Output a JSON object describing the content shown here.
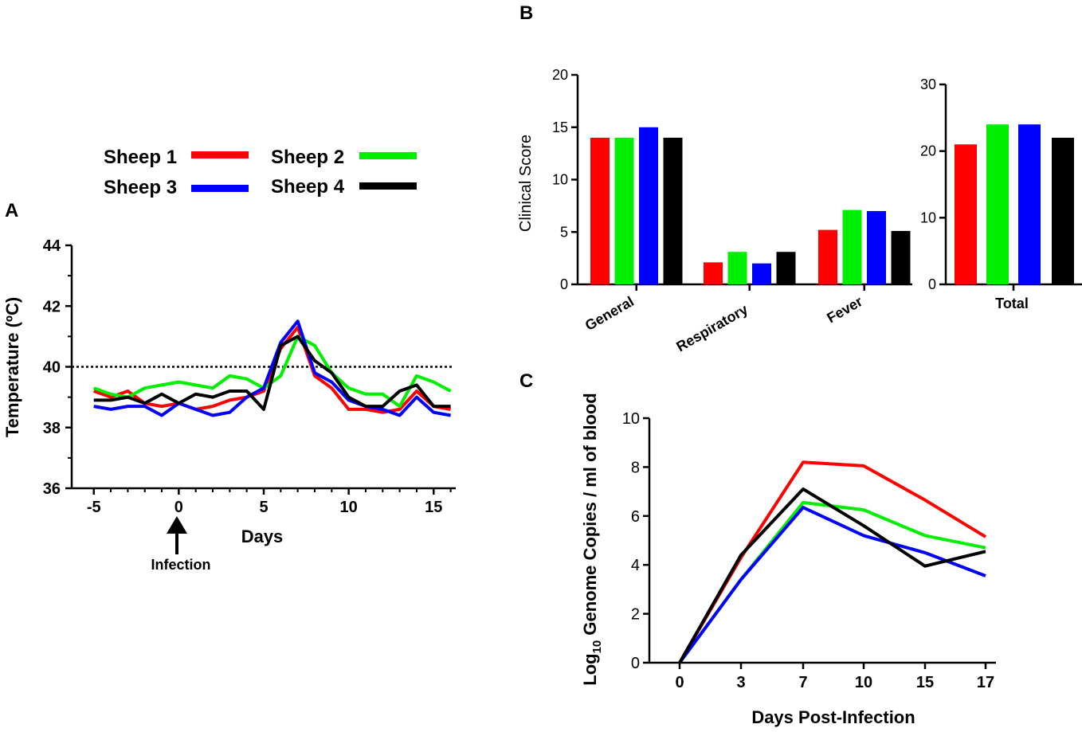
{
  "colors": {
    "sheep1": "#ff0000",
    "sheep2": "#00ee00",
    "sheep3": "#0000ff",
    "sheep4": "#000000"
  },
  "legend": {
    "items": [
      {
        "label": "Sheep 1",
        "color": "#ff0000"
      },
      {
        "label": "Sheep 2",
        "color": "#00ee00"
      },
      {
        "label": "Sheep 3",
        "color": "#0000ff"
      },
      {
        "label": "Sheep 4",
        "color": "#000000"
      }
    ]
  },
  "chart_data": [
    {
      "panel": "A",
      "type": "line",
      "xlabel": "Days",
      "ylabel": "Temperature (ºC)",
      "xlim": [
        -6.3,
        16.3
      ],
      "ylim": [
        36,
        44
      ],
      "xticks": [
        -5,
        0,
        5,
        10,
        15
      ],
      "yticks": [
        36,
        38,
        40,
        42,
        44
      ],
      "reference_line": {
        "y": 40,
        "style": "dotted"
      },
      "annotation": {
        "label": "Infection",
        "x": 0
      },
      "x": [
        -5,
        -4,
        -3,
        -2,
        -1,
        0,
        1,
        2,
        3,
        4,
        5,
        6,
        7,
        8,
        9,
        10,
        11,
        12,
        13,
        14,
        15,
        16
      ],
      "series": [
        {
          "name": "Sheep 1",
          "color": "#ff0000",
          "values": [
            39.2,
            39.0,
            39.2,
            38.8,
            38.7,
            38.8,
            38.6,
            38.7,
            38.9,
            39.0,
            39.2,
            40.6,
            41.3,
            39.7,
            39.3,
            38.6,
            38.6,
            38.5,
            38.6,
            39.2,
            38.7,
            38.6
          ]
        },
        {
          "name": "Sheep 2",
          "color": "#00ee00",
          "values": [
            39.3,
            39.1,
            39.0,
            39.3,
            39.4,
            39.5,
            39.4,
            39.3,
            39.7,
            39.6,
            39.3,
            39.7,
            41.0,
            40.7,
            39.8,
            39.3,
            39.1,
            39.1,
            38.7,
            39.7,
            39.5,
            39.2
          ]
        },
        {
          "name": "Sheep 3",
          "color": "#0000ff",
          "values": [
            38.7,
            38.6,
            38.7,
            38.7,
            38.4,
            38.8,
            38.6,
            38.4,
            38.5,
            39.0,
            39.3,
            40.8,
            41.5,
            39.8,
            39.5,
            38.9,
            38.7,
            38.6,
            38.4,
            39.0,
            38.5,
            38.4
          ]
        },
        {
          "name": "Sheep 4",
          "color": "#000000",
          "values": [
            38.9,
            38.9,
            39.0,
            38.8,
            39.1,
            38.8,
            39.1,
            39.0,
            39.2,
            39.2,
            38.6,
            40.7,
            41.0,
            40.2,
            39.8,
            39.0,
            38.7,
            38.7,
            39.2,
            39.4,
            38.7,
            38.7
          ]
        }
      ]
    },
    {
      "panel": "B",
      "type": "bar",
      "ylabel": "Clinical  Score",
      "ylim": [
        0,
        20
      ],
      "yticks": [
        0,
        5,
        10,
        15,
        20
      ],
      "categories": [
        "General",
        "Respiratory",
        "Fever"
      ],
      "series": [
        {
          "name": "Sheep 1",
          "color": "#ff0000",
          "values": [
            14,
            2.1,
            5.2
          ]
        },
        {
          "name": "Sheep 2",
          "color": "#00ee00",
          "values": [
            14,
            3.1,
            7.1
          ]
        },
        {
          "name": "Sheep 3",
          "color": "#0000ff",
          "values": [
            15,
            2.0,
            7.0
          ]
        },
        {
          "name": "Sheep 4",
          "color": "#000000",
          "values": [
            14,
            3.1,
            5.1
          ]
        }
      ]
    },
    {
      "panel": "B",
      "type": "bar",
      "ylim": [
        0,
        30
      ],
      "yticks": [
        0,
        10,
        20,
        30
      ],
      "categories": [
        "Total"
      ],
      "series": [
        {
          "name": "Sheep 1",
          "color": "#ff0000",
          "values": [
            21
          ]
        },
        {
          "name": "Sheep 2",
          "color": "#00ee00",
          "values": [
            24
          ]
        },
        {
          "name": "Sheep 3",
          "color": "#0000ff",
          "values": [
            24
          ]
        },
        {
          "name": "Sheep 4",
          "color": "#000000",
          "values": [
            22
          ]
        }
      ]
    },
    {
      "panel": "C",
      "type": "line",
      "xlabel": "Days Post-Infection",
      "ylabel_prefix": "Log",
      "ylabel_sub": "10",
      "ylabel_rest": " Genome Copies / ml of blood",
      "ylim": [
        0,
        10
      ],
      "yticks": [
        0,
        2,
        4,
        6,
        8,
        10
      ],
      "categories": [
        "0",
        "3",
        "7",
        "10",
        "15",
        "17"
      ],
      "series": [
        {
          "name": "Sheep 1",
          "color": "#ff0000",
          "values": [
            0,
            4.3,
            8.2,
            8.05,
            6.65,
            5.15
          ]
        },
        {
          "name": "Sheep 2",
          "color": "#00ee00",
          "values": [
            0,
            3.4,
            6.55,
            6.25,
            5.2,
            4.7
          ]
        },
        {
          "name": "Sheep 3",
          "color": "#0000ff",
          "values": [
            0,
            3.4,
            6.35,
            5.2,
            4.5,
            3.55
          ]
        },
        {
          "name": "Sheep 4",
          "color": "#000000",
          "values": [
            0,
            4.4,
            7.1,
            5.6,
            3.95,
            4.55
          ]
        }
      ]
    }
  ]
}
